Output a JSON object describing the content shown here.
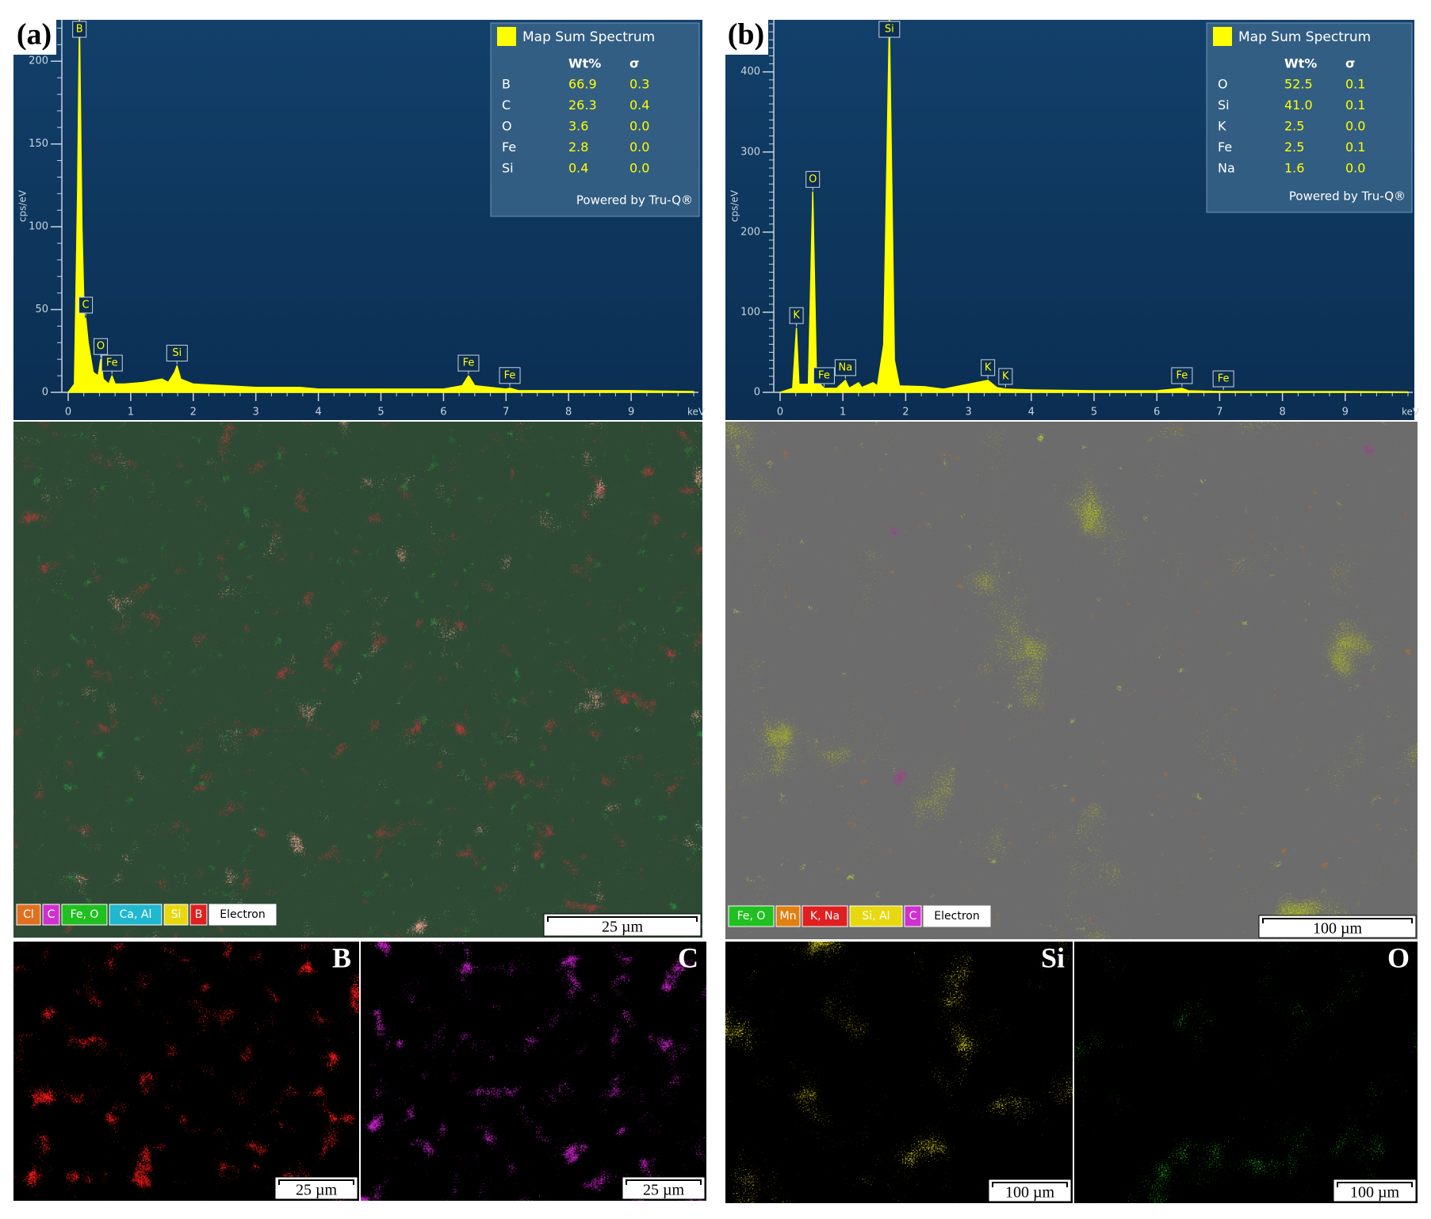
{
  "chart_data": [
    {
      "type": "line",
      "panel_label": "(a)",
      "y_label": "cps/eV",
      "x_label": "keV",
      "xlim": [
        0,
        10
      ],
      "ylim": [
        0,
        225
      ],
      "xticks": [
        0,
        1,
        2,
        3,
        4,
        5,
        6,
        7,
        8,
        9
      ],
      "yticks": [
        0,
        50,
        100,
        150,
        200
      ],
      "x": [
        0,
        0.1,
        0.15,
        0.18,
        0.22,
        0.26,
        0.28,
        0.32,
        0.4,
        0.48,
        0.52,
        0.56,
        0.65,
        0.7,
        0.75,
        0.9,
        1.2,
        1.5,
        1.6,
        1.7,
        1.74,
        1.8,
        2.0,
        2.5,
        3.0,
        3.7,
        4.0,
        5.0,
        6.0,
        6.3,
        6.4,
        6.5,
        7.0,
        7.06,
        7.2,
        8,
        9,
        10
      ],
      "series": [
        {
          "name": "Map Sum Spectrum",
          "color": "#ffff00",
          "values": [
            0,
            5,
            120,
            225,
            100,
            40,
            45,
            30,
            12,
            10,
            20,
            8,
            5,
            10,
            5,
            5,
            6,
            8,
            6,
            12,
            16,
            8,
            5,
            4,
            3,
            3,
            2,
            2,
            2,
            4,
            10,
            4,
            2,
            2.5,
            1,
            1,
            1,
            0.5
          ]
        }
      ],
      "annotations": [
        {
          "text": "B",
          "x": 0.18
        },
        {
          "text": "C",
          "x": 0.28
        },
        {
          "text": "O",
          "x": 0.52
        },
        {
          "text": "Fe",
          "x": 0.7
        },
        {
          "text": "Si",
          "x": 1.74
        },
        {
          "text": "Fe",
          "x": 6.4
        },
        {
          "text": "Fe",
          "x": 7.06
        }
      ],
      "summary": {
        "columns": [
          "Wt%",
          "σ"
        ],
        "rows": [
          [
            "B",
            "66.9",
            "0.3"
          ],
          [
            "C",
            "26.3",
            "0.4"
          ],
          [
            "O",
            "3.6",
            "0.0"
          ],
          [
            "Fe",
            "2.8",
            "0.0"
          ],
          [
            "Si",
            "0.4",
            "0.0"
          ]
        ],
        "footer": "Powered by Tru-Q®"
      }
    },
    {
      "type": "line",
      "panel_label": "(b)",
      "y_label": "cps/eV",
      "x_label": "keV",
      "xlim": [
        0,
        10
      ],
      "ylim": [
        0,
        465
      ],
      "xticks": [
        0,
        1,
        2,
        3,
        4,
        5,
        6,
        7,
        8,
        9
      ],
      "yticks": [
        0,
        100,
        200,
        300,
        400
      ],
      "x": [
        0,
        0.2,
        0.26,
        0.3,
        0.45,
        0.52,
        0.58,
        0.7,
        0.9,
        1.04,
        1.1,
        1.25,
        1.3,
        1.48,
        1.55,
        1.65,
        1.74,
        1.82,
        1.9,
        2.3,
        2.6,
        3.31,
        3.45,
        3.59,
        4,
        5,
        6,
        6.4,
        6.5,
        7.06,
        8,
        9,
        10
      ],
      "series": [
        {
          "name": "Map Sum Spectrum",
          "color": "#ffff00",
          "values": [
            0,
            5,
            80,
            10,
            10,
            250,
            15,
            5,
            5,
            15,
            5,
            12,
            6,
            12,
            8,
            60,
            465,
            40,
            8,
            7,
            4,
            15,
            6,
            4,
            3,
            2,
            2,
            5,
            2,
            1,
            1,
            1,
            0.5
          ]
        }
      ],
      "annotations": [
        {
          "text": "K",
          "x": 0.26
        },
        {
          "text": "O",
          "x": 0.52
        },
        {
          "text": "Fe",
          "x": 0.7
        },
        {
          "text": "Na",
          "x": 1.04
        },
        {
          "text": "Si",
          "x": 1.74
        },
        {
          "text": "K",
          "x": 3.31
        },
        {
          "text": "K",
          "x": 3.59
        },
        {
          "text": "Fe",
          "x": 6.4
        },
        {
          "text": "Fe",
          "x": 7.06
        }
      ],
      "summary": {
        "columns": [
          "Wt%",
          "σ"
        ],
        "rows": [
          [
            "O",
            "52.5",
            "0.1"
          ],
          [
            "Si",
            "41.0",
            "0.1"
          ],
          [
            "K",
            "2.5",
            "0.0"
          ],
          [
            "Fe",
            "2.5",
            "0.1"
          ],
          [
            "Na",
            "1.6",
            "0.0"
          ]
        ],
        "footer": "Powered by Tru-Q®"
      }
    }
  ],
  "maps": [
    {
      "composite": {
        "legend": [
          {
            "label": "Cl",
            "color": "#e07020"
          },
          {
            "label": "C",
            "color": "#d030d0"
          },
          {
            "label": "Fe, O",
            "color": "#20c020"
          },
          {
            "label": "Ca, Al",
            "color": "#20b8d0"
          },
          {
            "label": "Si",
            "color": "#e8d810"
          },
          {
            "label": "B",
            "color": "#e02020"
          },
          {
            "label": "Electron",
            "color": "#ffffff"
          }
        ],
        "scale_bar": "25 µm"
      },
      "element_maps": [
        {
          "element": "B",
          "color": "#ff1818",
          "scale_bar": "25 µm"
        },
        {
          "element": "C",
          "color": "#c020c0",
          "scale_bar": "25 µm"
        }
      ]
    },
    {
      "composite": {
        "legend": [
          {
            "label": "Fe, O",
            "color": "#20c020"
          },
          {
            "label": "Mn",
            "color": "#e08010"
          },
          {
            "label": "K, Na",
            "color": "#e02020"
          },
          {
            "label": "Si, Al",
            "color": "#e8d810"
          },
          {
            "label": "C",
            "color": "#d030d0"
          },
          {
            "label": "Electron",
            "color": "#ffffff"
          }
        ],
        "scale_bar": "100 µm"
      },
      "element_maps": [
        {
          "element": "Si",
          "color": "#e8e010",
          "scale_bar": "100 µm"
        },
        {
          "element": "O",
          "color": "#20c020",
          "scale_bar": "100 µm"
        }
      ]
    }
  ]
}
